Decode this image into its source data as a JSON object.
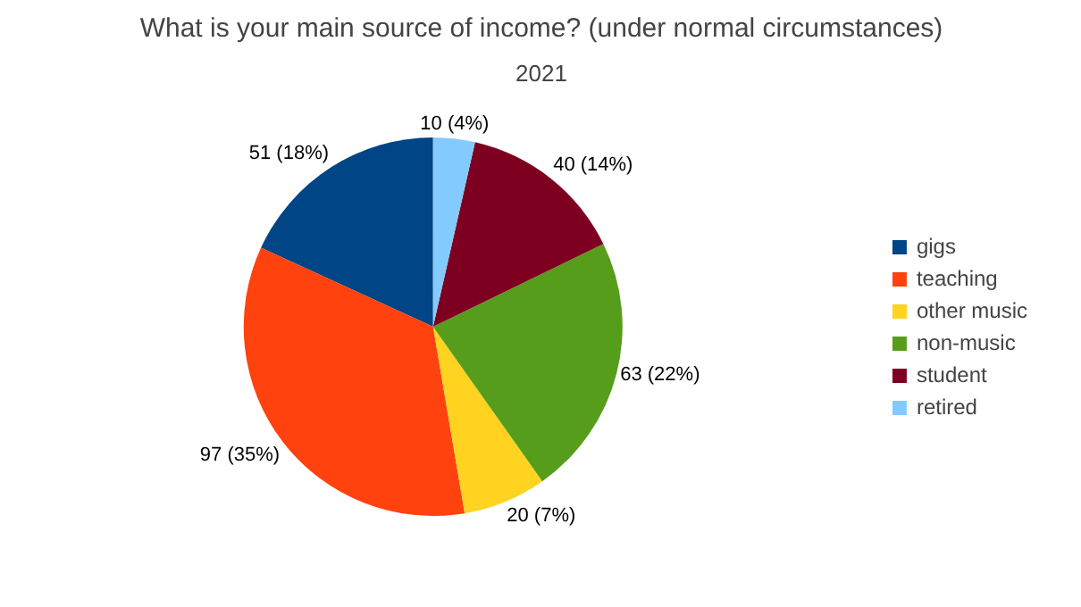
{
  "chart_data": {
    "type": "pie",
    "title": "What is your main source of income? (under normal circumstances)",
    "subtitle": "2021",
    "categories": [
      "gigs",
      "teaching",
      "other music",
      "non-music",
      "student",
      "retired"
    ],
    "values": [
      51,
      97,
      20,
      63,
      40,
      10
    ],
    "colors": [
      "#004586",
      "#ff420e",
      "#ffd320",
      "#579d1c",
      "#7e0021",
      "#83caff"
    ],
    "value_labels": [
      "51 (18%)",
      "97 (35%)",
      "20 (7%)",
      "63 (22%)",
      "40 (14%)",
      "10 (4%)"
    ],
    "legend": "right"
  }
}
